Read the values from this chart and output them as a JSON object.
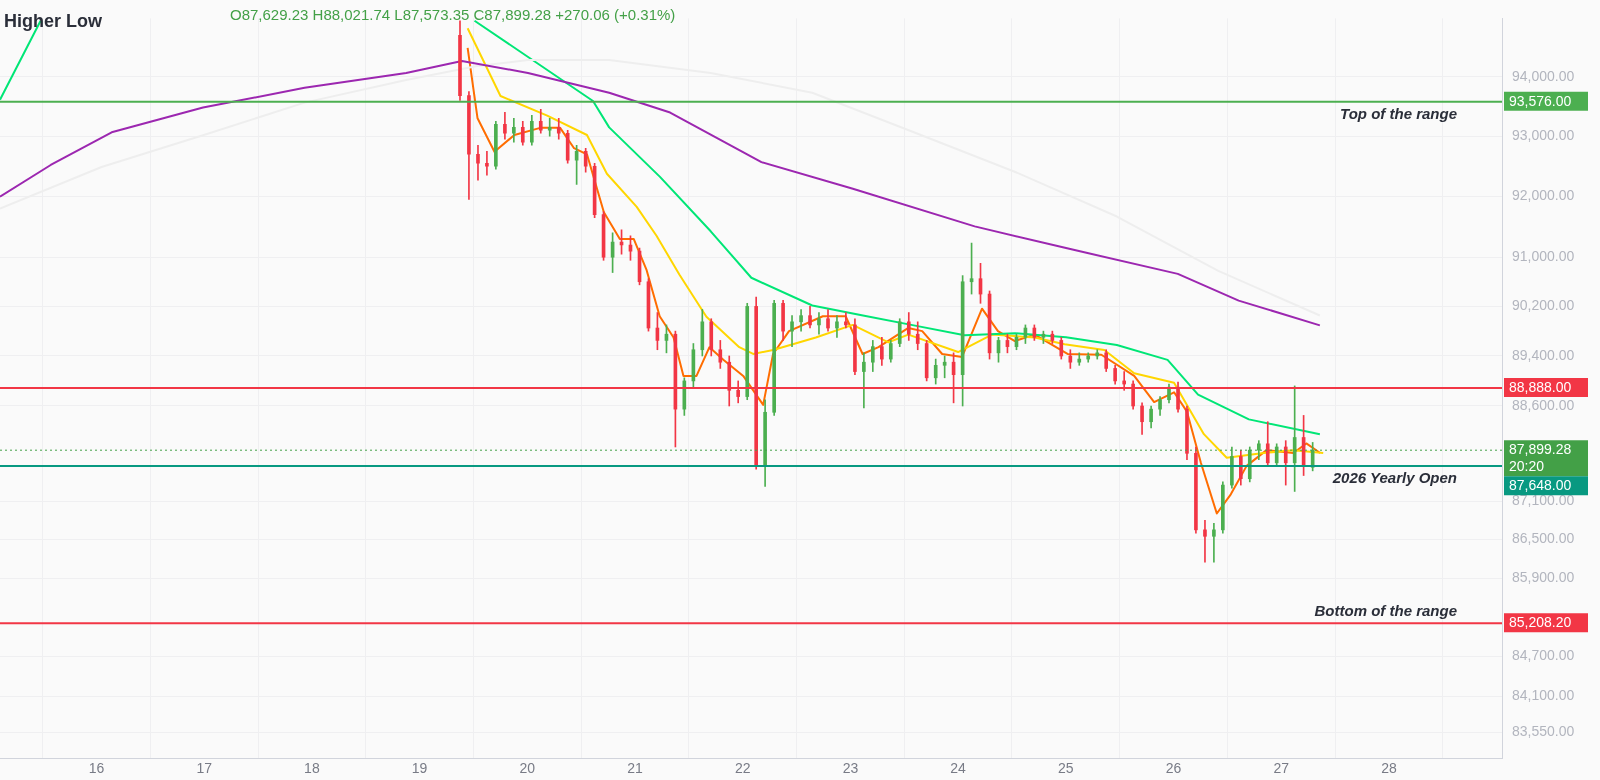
{
  "chart_data": {
    "type": "candlestick",
    "log": true,
    "grid": true,
    "legend": false,
    "marker": "none",
    "xlim": [
      15.104,
      29.05
    ],
    "xticks": [
      16,
      17,
      18,
      19,
      20,
      21,
      22,
      23,
      24,
      25,
      26,
      27,
      28
    ],
    "ylim": [
      83170,
      94990
    ],
    "yticks": [
      {
        "value": 94000,
        "label": "94,000.00"
      },
      {
        "value": 93000,
        "label": "93,000.00"
      },
      {
        "value": 92000,
        "label": "92,000.00"
      },
      {
        "value": 91000,
        "label": "91,000.00"
      },
      {
        "value": 90200,
        "label": "90,200.00"
      },
      {
        "value": 89400,
        "label": "89,400.00"
      },
      {
        "value": 88600,
        "label": "88,600.00"
      },
      {
        "value": 87100,
        "label": "87,100.00"
      },
      {
        "value": 86500,
        "label": "86,500.00"
      },
      {
        "value": 85900,
        "label": "85,900.00"
      },
      {
        "value": 84700,
        "label": "84,700.00"
      },
      {
        "value": 84100,
        "label": "84,100.00"
      },
      {
        "value": 83550,
        "label": "83,550.00"
      }
    ],
    "x": [
      19.375,
      19.458,
      19.542,
      19.625,
      19.708,
      19.792,
      19.875,
      19.958,
      20.042,
      20.125,
      20.208,
      20.292,
      20.375,
      20.458,
      20.542,
      20.625,
      20.708,
      20.792,
      20.875,
      20.958,
      21.042,
      21.125,
      21.208,
      21.292,
      21.375,
      21.458,
      21.542,
      21.625,
      21.708,
      21.792,
      21.875,
      21.958,
      22.042,
      22.125,
      22.208,
      22.292,
      22.375,
      22.458,
      22.542,
      22.625,
      22.708,
      22.792,
      22.875,
      22.958,
      23.042,
      23.125,
      23.208,
      23.292,
      23.375,
      23.458,
      23.542,
      23.625,
      23.708,
      23.792,
      23.875,
      23.958,
      24.042,
      24.125,
      24.208,
      24.292,
      24.375,
      24.458,
      24.542,
      24.625,
      24.708,
      24.792,
      24.875,
      24.958,
      25.042,
      25.125,
      25.208,
      25.292,
      25.375,
      25.458,
      25.542,
      25.625,
      25.708,
      25.792,
      25.875,
      25.958,
      26.042,
      26.125,
      26.208,
      26.292,
      26.375,
      26.458,
      26.542,
      26.625,
      26.708,
      26.792,
      26.875,
      26.958,
      27.042,
      27.125,
      27.208,
      27.292
    ],
    "ohlc": [
      [
        94700,
        94950,
        93600,
        93680
      ],
      [
        93680,
        93750,
        91950,
        92700
      ],
      [
        92700,
        92850,
        92270,
        92550
      ],
      [
        92550,
        92750,
        92350,
        92500
      ],
      [
        92500,
        93250,
        92450,
        93200
      ],
      [
        93200,
        93400,
        92950,
        93050
      ],
      [
        93050,
        93300,
        92900,
        93150
      ],
      [
        93150,
        93250,
        92850,
        92900
      ],
      [
        92900,
        93350,
        92850,
        93250
      ],
      [
        93250,
        93450,
        93050,
        93100
      ],
      [
        93100,
        93300,
        93000,
        93150
      ],
      [
        93150,
        93300,
        92950,
        93050
      ],
      [
        93050,
        93100,
        92550,
        92600
      ],
      [
        92600,
        92850,
        92200,
        92750
      ],
      [
        92750,
        92800,
        92400,
        92500
      ],
      [
        92500,
        92550,
        91650,
        91700
      ],
      [
        91700,
        91750,
        90950,
        91000
      ],
      [
        91000,
        91400,
        90750,
        91250
      ],
      [
        91250,
        91450,
        91050,
        91200
      ],
      [
        91200,
        91350,
        90950,
        91100
      ],
      [
        91100,
        91150,
        90550,
        90600
      ],
      [
        90600,
        90650,
        89800,
        89850
      ],
      [
        89850,
        90100,
        89500,
        89650
      ],
      [
        89650,
        89900,
        89450,
        89750
      ],
      [
        89750,
        89800,
        87950,
        88550
      ],
      [
        88550,
        89050,
        88450,
        89000
      ],
      [
        89000,
        89600,
        88900,
        89500
      ],
      [
        89500,
        90150,
        89400,
        89950
      ],
      [
        89950,
        90000,
        89400,
        89500
      ],
      [
        89500,
        89650,
        89200,
        89300
      ],
      [
        89300,
        89400,
        88600,
        88850
      ],
      [
        88850,
        89000,
        88650,
        88750
      ],
      [
        88750,
        90250,
        88700,
        90200
      ],
      [
        90200,
        90350,
        87600,
        87650
      ],
      [
        87650,
        88700,
        87330,
        88500
      ],
      [
        88500,
        90300,
        88450,
        90250
      ],
      [
        90250,
        90300,
        89650,
        89800
      ],
      [
        89800,
        90050,
        89550,
        89950
      ],
      [
        89950,
        90150,
        89800,
        90050
      ],
      [
        90050,
        90200,
        89850,
        89900
      ],
      [
        89900,
        90100,
        89750,
        90000
      ],
      [
        90000,
        90150,
        89800,
        89850
      ],
      [
        89850,
        90050,
        89700,
        89950
      ],
      [
        89950,
        90100,
        89850,
        89900
      ],
      [
        89900,
        90000,
        89100,
        89150
      ],
      [
        89150,
        89450,
        88570,
        89300
      ],
      [
        89300,
        89650,
        89150,
        89550
      ],
      [
        89550,
        89700,
        89250,
        89350
      ],
      [
        89350,
        89650,
        89300,
        89600
      ],
      [
        89600,
        90000,
        89550,
        89950
      ],
      [
        89950,
        90100,
        89650,
        89750
      ],
      [
        89750,
        89950,
        89500,
        89600
      ],
      [
        89600,
        89650,
        89000,
        89050
      ],
      [
        89050,
        89350,
        88950,
        89250
      ],
      [
        89250,
        89400,
        89050,
        89300
      ],
      [
        89300,
        89450,
        88650,
        89100
      ],
      [
        89100,
        90700,
        88600,
        90600
      ],
      [
        90600,
        91230,
        90400,
        90650
      ],
      [
        90650,
        90900,
        90250,
        90400
      ],
      [
        90400,
        90450,
        89350,
        89450
      ],
      [
        89450,
        89700,
        89300,
        89650
      ],
      [
        89650,
        89750,
        89450,
        89550
      ],
      [
        89550,
        89750,
        89500,
        89700
      ],
      [
        89700,
        89900,
        89600,
        89850
      ],
      [
        89850,
        89900,
        89650,
        89700
      ],
      [
        89700,
        89800,
        89600,
        89750
      ],
      [
        89750,
        89800,
        89600,
        89650
      ],
      [
        89650,
        89700,
        89350,
        89400
      ],
      [
        89400,
        89500,
        89200,
        89300
      ],
      [
        89300,
        89450,
        89250,
        89350
      ],
      [
        89350,
        89450,
        89300,
        89400
      ],
      [
        89400,
        89500,
        89350,
        89450
      ],
      [
        89450,
        89500,
        89150,
        89200
      ],
      [
        89200,
        89250,
        88950,
        89000
      ],
      [
        89000,
        89150,
        88850,
        88950
      ],
      [
        88950,
        89000,
        88550,
        88600
      ],
      [
        88600,
        88650,
        88150,
        88350
      ],
      [
        88350,
        88600,
        88250,
        88550
      ],
      [
        88550,
        88750,
        88450,
        88700
      ],
      [
        88700,
        88950,
        88650,
        88900
      ],
      [
        88900,
        88980,
        88500,
        88550
      ],
      [
        88550,
        88600,
        87750,
        87850
      ],
      [
        87850,
        87950,
        86600,
        86650
      ],
      [
        86650,
        86800,
        86150,
        86550
      ],
      [
        86550,
        86750,
        86150,
        86650
      ],
      [
        86650,
        87400,
        86600,
        87350
      ],
      [
        87350,
        87950,
        87300,
        87800
      ],
      [
        87800,
        87900,
        87350,
        87450
      ],
      [
        87450,
        87950,
        87400,
        87900
      ],
      [
        87900,
        88050,
        87750,
        88000
      ],
      [
        88000,
        88350,
        87650,
        87700
      ],
      [
        87700,
        88000,
        87650,
        87950
      ],
      [
        87950,
        88050,
        87350,
        87700
      ],
      [
        87700,
        88920,
        87250,
        88100
      ],
      [
        88100,
        88450,
        87500,
        87650
      ],
      [
        87629.23,
        88021.74,
        87573.35,
        87899.28
      ]
    ],
    "series": [
      {
        "type": "line",
        "color": "#9c27b0",
        "x": [
          15.104,
          15.575,
          16.141,
          16.989,
          17.932,
          18.875,
          19.393,
          20.006,
          20.76,
          21.326,
          22.174,
          23.023,
          24.154,
          25.002,
          26.04,
          26.605,
          27.359
        ],
        "values": [
          91995,
          92521,
          93066,
          93480,
          93813,
          94064,
          94264,
          94064,
          93730,
          93397,
          92569,
          92127,
          91506,
          91150,
          90728,
          90294,
          89893
        ]
      },
      {
        "type": "line",
        "color": "#eeeeee",
        "x": [
          15.104,
          16.047,
          16.989,
          17.932,
          18.875,
          19.535,
          20.006,
          20.76,
          21.703,
          22.646,
          23.589,
          24.531,
          25.474,
          26.416,
          27.359
        ],
        "values": [
          91800,
          92488,
          93016,
          93563,
          93946,
          94180,
          94281,
          94281,
          94064,
          93730,
          93066,
          92405,
          91668,
          90776,
          90053
        ]
      },
      {
        "type": "line",
        "color": "#00e676",
        "x": [
          15.104,
          15.481,
          17,
          19.51,
          20.61,
          20.76,
          21.232,
          21.703,
          22.08,
          22.646,
          23.117,
          23.589,
          24.06,
          24.531,
          25.002,
          25.474,
          25.945,
          26.228,
          26.7,
          27.359
        ],
        "values": [
          93612,
          94950,
          null,
          94950,
          93591,
          93148,
          92323,
          91425,
          90665,
          90214,
          90053,
          89893,
          89734,
          89766,
          89701,
          89575,
          89337,
          88780,
          88387,
          88151
        ]
      },
      {
        "type": "line",
        "color": "#ffd600",
        "x": [
          19.446,
          19.751,
          20.185,
          20.554,
          20.739,
          21.016,
          21.201,
          21.413,
          21.663,
          21.968,
          22.097,
          22.282,
          22.679,
          23.021,
          23.353,
          23.538,
          24.0,
          24.314,
          24.711,
          24.989,
          25.358,
          25.635,
          26.005,
          26.282,
          26.494,
          26.836,
          27.113,
          27.39
        ],
        "values": [
          94823,
          93674,
          93346,
          93021,
          92376,
          91828,
          91348,
          90714,
          90033,
          89541,
          89432,
          89495,
          89698,
          89900,
          89620,
          89744,
          89463,
          89744,
          89698,
          89588,
          89495,
          89123,
          88970,
          88153,
          87780,
          87855,
          87900,
          87855
        ]
      },
      {
        "type": "line",
        "color": "#ff6d00",
        "x": [
          19.446,
          19.538,
          19.695,
          19.88,
          20.12,
          20.305,
          20.434,
          20.554,
          20.711,
          20.859,
          20.988,
          21.108,
          21.229,
          21.358,
          21.45,
          21.571,
          21.691,
          21.82,
          22.005,
          22.19,
          22.282,
          22.43,
          22.744,
          22.956,
          23.113,
          23.261,
          23.538,
          23.667,
          23.852,
          24.037,
          24.222,
          24.37,
          24.527,
          24.711,
          25.016,
          25.33,
          25.635,
          25.82,
          26.005,
          26.125,
          26.254,
          26.402,
          26.532,
          26.679,
          26.864,
          27.113,
          27.233,
          27.362
        ],
        "values": [
          94490,
          93300,
          92740,
          93021,
          93140,
          93140,
          92800,
          92698,
          91737,
          91300,
          91300,
          90789,
          90040,
          89696,
          89080,
          89080,
          89541,
          89340,
          89080,
          88617,
          89432,
          89800,
          90040,
          90040,
          89432,
          89541,
          89851,
          89800,
          89432,
          89385,
          90163,
          89800,
          89640,
          89744,
          89432,
          89420,
          89080,
          88663,
          88818,
          88510,
          87702,
          86905,
          87205,
          87652,
          87900,
          87855,
          88006,
          87855
        ]
      }
    ],
    "ref_lines": [
      {
        "axis": "y",
        "value": 93576,
        "label": "93,576.00",
        "color": "#4caf50",
        "line_style": "solid"
      },
      {
        "axis": "y",
        "value": 88888,
        "label": "88,888.00",
        "color": "#f23645",
        "line_style": "solid"
      },
      {
        "axis": "y",
        "value": 87899.28,
        "label": "87,899.28\n20:20",
        "color": "#43a047",
        "line_style": "dotted"
      },
      {
        "axis": "y",
        "value": 87648,
        "label": "87,648.00",
        "color": "#089981",
        "line_style": "solid"
      },
      {
        "axis": "y",
        "value": 85208.2,
        "label": "85,208.20",
        "color": "#f23645",
        "line_style": "solid"
      }
    ],
    "annotations": [
      "Higher Low",
      "O87,629.23 H88,021.74 L87,573.35 C87,899.28 +270.06 (+0.31%)",
      {
        "text": "Top of the range",
        "y": 93576
      },
      {
        "text": "2026 Yearly Open",
        "y": 87648
      },
      {
        "text": "Bottom of the range",
        "y": 85208.2
      }
    ]
  }
}
